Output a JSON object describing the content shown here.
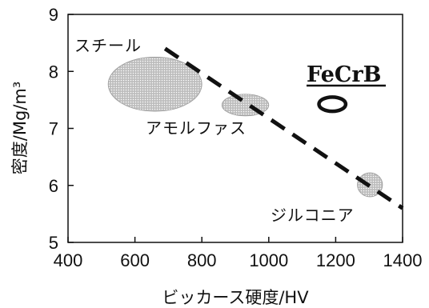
{
  "chart_data": {
    "type": "scatter",
    "title": "",
    "xlabel": "ビッカース硬度/HV",
    "ylabel": "密度/Mg/m³",
    "xlim": [
      400,
      1400
    ],
    "ylim": [
      5,
      9
    ],
    "x_ticks": [
      "400",
      "600",
      "800",
      "1000",
      "1200",
      "1400"
    ],
    "y_ticks": [
      "5",
      "6",
      "7",
      "8",
      "9"
    ],
    "grid": false,
    "regions": [
      {
        "label": "スチール",
        "x_range": [
          520,
          800
        ],
        "y_range": [
          7.3,
          8.25
        ],
        "style": "dotted-fill"
      },
      {
        "label": "アモルファス",
        "x_range": [
          860,
          1000
        ],
        "y_range": [
          7.22,
          7.6
        ],
        "style": "dotted-fill"
      },
      {
        "label": "ジルコニア",
        "x_range": [
          1265,
          1340
        ],
        "y_range": [
          5.8,
          6.22
        ],
        "style": "dotted-fill"
      },
      {
        "label": "FeCrB",
        "x_range": [
          1150,
          1230
        ],
        "y_range": [
          7.3,
          7.55
        ],
        "style": "outline"
      }
    ],
    "trend_line": {
      "style": "dashed",
      "x": [
        690,
        1400
      ],
      "y": [
        8.4,
        5.6
      ]
    },
    "colors": {
      "fill": "#bdbdbd",
      "dot": "#ffffff",
      "outline": "#111111"
    }
  }
}
